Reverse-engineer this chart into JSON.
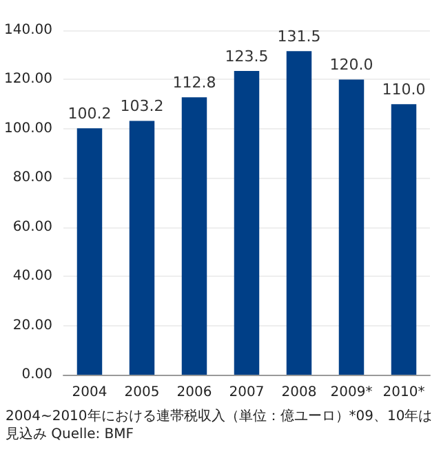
{
  "chart_data": {
    "type": "bar",
    "categories": [
      "2004",
      "2005",
      "2006",
      "2007",
      "2008",
      "2009*",
      "2010*"
    ],
    "values": [
      100.2,
      103.2,
      112.8,
      123.5,
      131.5,
      120.0,
      110.0
    ],
    "value_labels": [
      "100.2",
      "103.2",
      "112.8",
      "123.5",
      "131.5",
      "120.0",
      "110.0"
    ],
    "color": "#003f87",
    "ylim": [
      0,
      140
    ],
    "yticks": [
      {
        "value": 0,
        "label": "0.00"
      },
      {
        "value": 20,
        "label": "20.00"
      },
      {
        "value": 40,
        "label": "40.00"
      },
      {
        "value": 60,
        "label": "60.00"
      },
      {
        "value": 80,
        "label": "80.00"
      },
      {
        "value": 100,
        "label": "100.00"
      },
      {
        "value": 120,
        "label": "120.00"
      },
      {
        "value": 140,
        "label": "140.00"
      }
    ],
    "grid": "y",
    "annotations": [
      "2004~2010年における連帯税収入（単位：億ユーロ）*09、10年は見込み Quelle: BMF"
    ]
  }
}
